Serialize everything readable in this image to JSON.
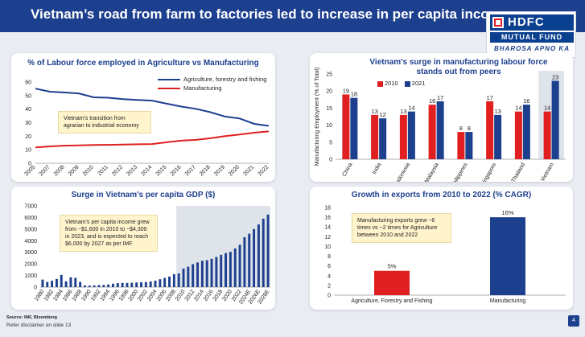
{
  "header": {
    "title": "Vietnam’s road from farm to factories led to increase in per capita income",
    "logo": {
      "brand": "HDFC",
      "line2": "MUTUAL FUND",
      "tagline": "BHAROSA APNO KA"
    }
  },
  "colors": {
    "navy": "#1c3f8e",
    "red": "#e02020",
    "gray": "#b8bec8"
  },
  "footer": {
    "source": "Source: IMF, Bloomberg",
    "disclaimer": "Refer disclaimer on slide 13",
    "page": "4"
  },
  "chart_data": [
    {
      "id": "labour",
      "type": "line",
      "title": "% of Labour force employed in Agriculture vs Manufacturing",
      "x": [
        "2005",
        "2007",
        "2008",
        "2009",
        "2010",
        "2011",
        "2012",
        "2013",
        "2014",
        "2015",
        "2016",
        "2017",
        "2018",
        "2019",
        "2020",
        "2021",
        "2022"
      ],
      "series": [
        {
          "name": "Agriculture, forestry and fishing",
          "color": "#1c3f8e",
          "values": [
            55.1,
            52.9,
            52.3,
            51.5,
            48.7,
            48.4,
            47.4,
            46.8,
            46.3,
            44.0,
            41.9,
            40.2,
            37.7,
            34.5,
            33.1,
            29.1,
            27.6
          ]
        },
        {
          "name": "Manufacturing",
          "color": "#e02020",
          "values": [
            11.7,
            12.5,
            13.0,
            13.2,
            13.5,
            13.6,
            13.8,
            14.0,
            14.2,
            15.5,
            16.7,
            17.3,
            18.5,
            20.1,
            21.2,
            22.6,
            23.5
          ]
        }
      ],
      "ylim": [
        0,
        60
      ],
      "yticks": [
        0,
        10,
        20,
        30,
        40,
        50,
        60
      ],
      "annotation": "Vietnam's transition from agrarian to industrial economy"
    },
    {
      "id": "peers",
      "type": "bar",
      "title": "Vietnam's surge in manufacturing labour force stands out from peers",
      "ylabel": "Manufacturing Employment (% of Total)",
      "categories": [
        "China",
        "India",
        "Indonesia",
        "Malaysia",
        "Philippines",
        "Singapore",
        "Thailand",
        "Vietnam"
      ],
      "series": [
        {
          "name": "2010",
          "color": "#e02020",
          "values": [
            19,
            13,
            13,
            16,
            8,
            17,
            14,
            14
          ]
        },
        {
          "name": "2021",
          "color": "#1c3f8e",
          "values": [
            18,
            12,
            14,
            17,
            8,
            13,
            16,
            23
          ]
        }
      ],
      "ylim": [
        0,
        25
      ],
      "yticks": [
        0,
        5,
        10,
        15,
        20,
        25
      ],
      "highlight": "Vietnam"
    },
    {
      "id": "gdp",
      "type": "bar",
      "title": "Surge in Vietnam's per capita GDP ($)",
      "x": [
        "1980",
        "1981",
        "1982",
        "1983",
        "1984",
        "1985",
        "1986",
        "1987",
        "1988",
        "1989",
        "1990",
        "1991",
        "1992",
        "1993",
        "1994",
        "1995",
        "1996",
        "1997",
        "1998",
        "1999",
        "2000",
        "2001",
        "2002",
        "2003",
        "2004",
        "2005",
        "2006",
        "2007",
        "2008",
        "2009",
        "2010",
        "2011",
        "2012",
        "2013",
        "2014",
        "2015",
        "2016",
        "2017",
        "2018",
        "2019",
        "2020",
        "2021",
        "2022",
        "2023",
        "2024E",
        "2025E",
        "2026E",
        "2027E",
        "2028E"
      ],
      "xtick_labels": [
        "1980",
        "1982",
        "1984",
        "1986",
        "1988",
        "1990",
        "1992",
        "1994",
        "1996",
        "1998",
        "2000",
        "2002",
        "2004",
        "2006",
        "2008",
        "2010",
        "2012",
        "2014",
        "2016",
        "2018",
        "2020",
        "2022",
        "2024E",
        "2026E",
        "2028E"
      ],
      "values": [
        650,
        450,
        550,
        700,
        1050,
        500,
        850,
        800,
        450,
        150,
        130,
        150,
        180,
        190,
        230,
        290,
        340,
        360,
        360,
        370,
        400,
        420,
        440,
        490,
        560,
        680,
        790,
        910,
        1120,
        1180,
        1600,
        1760,
        1980,
        2120,
        2280,
        2320,
        2440,
        2600,
        2780,
        2930,
        3040,
        3330,
        3650,
        4300,
        4600,
        5000,
        5400,
        5900,
        6250
      ],
      "ylim": [
        0,
        7000
      ],
      "yticks": [
        0,
        1000,
        2000,
        3000,
        4000,
        5000,
        6000,
        7000
      ],
      "highlight_range": [
        "2009",
        "2028E"
      ],
      "annotation": "Vietnam's per capita income grew from ~$1,600 in 2010 to ~$4,300 in 2023, and is expected to reach $6,000 by 2027 as per IMF"
    },
    {
      "id": "exports",
      "type": "bar",
      "title": "Growth in exports from 2010 to 2022 (% CAGR)",
      "categories": [
        "Agriculture, Forestry and Fishing",
        "Manufacturing"
      ],
      "values": [
        5,
        16
      ],
      "value_labels": [
        "5%",
        "16%"
      ],
      "colors": [
        "#e02020",
        "#1c3f8e"
      ],
      "ylim": [
        0,
        18
      ],
      "yticks": [
        0,
        2,
        4,
        6,
        8,
        10,
        12,
        14,
        16,
        18
      ],
      "annotation": "Manufacturing exports grew ~6 times vs ~2 times for Agriculture between 2010 and 2022"
    }
  ]
}
